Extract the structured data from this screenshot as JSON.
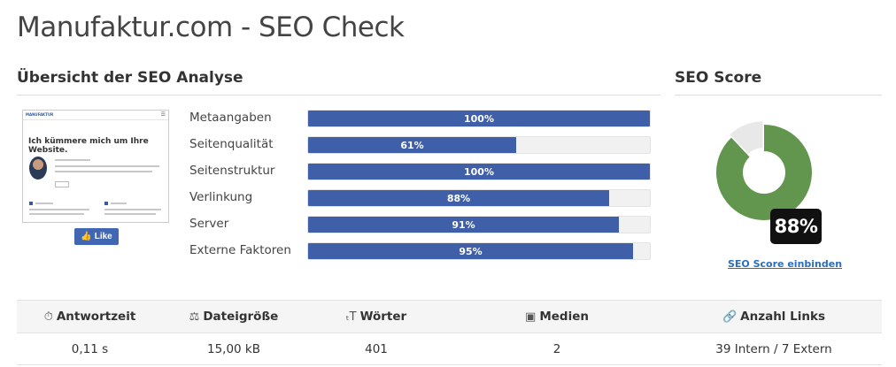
{
  "page": {
    "title": "Manufaktur.com - SEO Check"
  },
  "overview": {
    "heading": "Übersicht der SEO Analyse",
    "thumbnail": {
      "logo": "MANUFAKTUR",
      "headline": "Ich kümmere mich um Ihre Website."
    },
    "like_button": {
      "label": "Like",
      "icon": "thumbs-up-icon"
    },
    "metrics": [
      {
        "label": "Metaangaben",
        "value": 100,
        "display": "100%"
      },
      {
        "label": "Seitenqualität",
        "value": 61,
        "display": "61%"
      },
      {
        "label": "Seitenstruktur",
        "value": 100,
        "display": "100%"
      },
      {
        "label": "Verlinkung",
        "value": 88,
        "display": "88%"
      },
      {
        "label": "Server",
        "value": 91,
        "display": "91%"
      },
      {
        "label": "Externe Faktoren",
        "value": 95,
        "display": "95%"
      }
    ],
    "bar_color": "#3f5fa8"
  },
  "score": {
    "heading": "SEO Score",
    "value": 88,
    "display": "88%",
    "link_label": "SEO Score einbinden",
    "colors": {
      "fill": "#62964f",
      "remainder": "#e8e8e8"
    }
  },
  "stats": {
    "headers": [
      {
        "label": "Antwortzeit",
        "icon": "stopwatch-icon",
        "glyph": "⏱"
      },
      {
        "label": "Dateigröße",
        "icon": "scale-icon",
        "glyph": "⚖"
      },
      {
        "label": "Wörter",
        "icon": "text-size-icon",
        "glyph": "ₜT"
      },
      {
        "label": "Medien",
        "icon": "image-icon",
        "glyph": "▣"
      },
      {
        "label": "Anzahl Links",
        "icon": "link-icon",
        "glyph": "🔗"
      }
    ],
    "values": [
      "0,11 s",
      "15,00 kB",
      "401",
      "2",
      "39 Intern / 7 Extern"
    ]
  }
}
